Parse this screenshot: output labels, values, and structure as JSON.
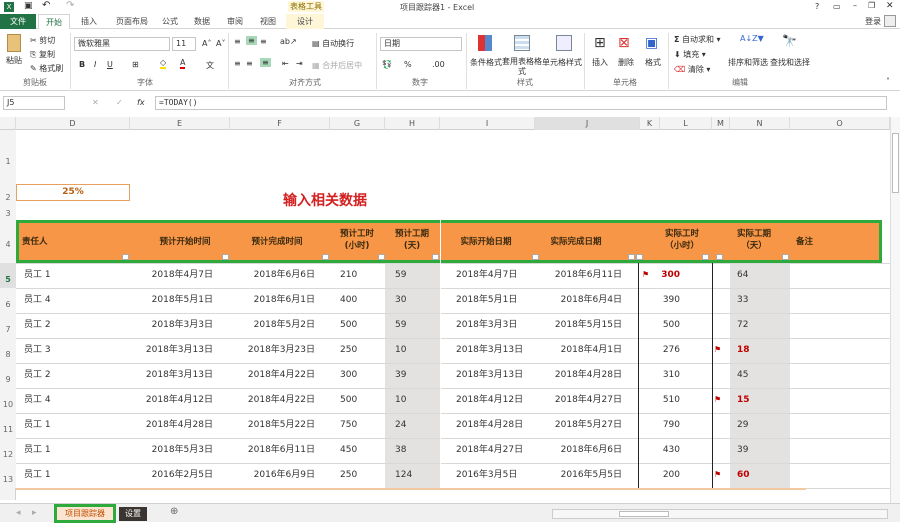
{
  "app": {
    "title": "项目跟踪器1 - Excel",
    "context_tab": "表格工具",
    "login": "登录"
  },
  "tabs": [
    "文件",
    "开始",
    "插入",
    "页面布局",
    "公式",
    "数据",
    "审阅",
    "视图",
    "设计"
  ],
  "ribbon": {
    "clipboard": {
      "paste": "粘贴",
      "cut": "剪切",
      "copy": "复制",
      "format_painter": "格式刷",
      "label": "剪贴板"
    },
    "font": {
      "name": "微软雅黑",
      "size": "11",
      "label": "字体",
      "bold": "B",
      "italic": "I",
      "underline": "U"
    },
    "alignment": {
      "wrap": "自动换行",
      "merge": "合并后居中",
      "label": "对齐方式"
    },
    "number": {
      "format": "日期",
      "percent": "%",
      "label": "数字"
    },
    "styles": {
      "conditional": "条件格式",
      "table": "套用表格格式",
      "cell": "单元格样式",
      "label": "样式"
    },
    "cells": {
      "insert": "插入",
      "delete": "删除",
      "format": "格式",
      "label": "单元格"
    },
    "editing": {
      "autosum": "自动求和",
      "fill": "填充",
      "clear": "清除",
      "sort": "排序和筛选",
      "find": "查找和选择",
      "label": "编辑"
    }
  },
  "formula_bar": {
    "name_box": "J5",
    "formula": "=TODAY()"
  },
  "columns": [
    "D",
    "E",
    "F",
    "G",
    "H",
    "I",
    "J",
    "K",
    "L",
    "M",
    "N",
    "O"
  ],
  "rows": [
    "1",
    "2",
    "3",
    "4",
    "5",
    "6",
    "7",
    "8",
    "9",
    "10",
    "11",
    "12",
    "13"
  ],
  "progress": {
    "value": "25%"
  },
  "sheet_title": "输入相关数据",
  "headers": [
    "责任人",
    "预计开始时间",
    "预计完成时间",
    "预计工时\n(小时)",
    "预计工期\n(天)",
    "实际开始日期",
    "实际完成日期",
    "实际工时\n（小时）",
    "实际工期\n（天）",
    "备注"
  ],
  "table": [
    {
      "owner": "员工 1",
      "pstart": "2018年4月7日",
      "pend": "2018年6月6日",
      "phours": "210",
      "pdays": "59",
      "astart": "2018年4月7日",
      "aend": "2018年6月11日",
      "ahours": "300",
      "adays": "64",
      "hflag": true,
      "dflag": false
    },
    {
      "owner": "员工 4",
      "pstart": "2018年5月1日",
      "pend": "2018年6月1日",
      "phours": "400",
      "pdays": "30",
      "astart": "2018年5月1日",
      "aend": "2018年6月4日",
      "ahours": "390",
      "adays": "33",
      "hflag": false,
      "dflag": false
    },
    {
      "owner": "员工 2",
      "pstart": "2018年3月3日",
      "pend": "2018年5月2日",
      "phours": "500",
      "pdays": "59",
      "astart": "2018年3月3日",
      "aend": "2018年5月15日",
      "ahours": "500",
      "adays": "72",
      "hflag": false,
      "dflag": false
    },
    {
      "owner": "员工 3",
      "pstart": "2018年3月13日",
      "pend": "2018年3月23日",
      "phours": "250",
      "pdays": "10",
      "astart": "2018年3月13日",
      "aend": "2018年4月1日",
      "ahours": "276",
      "adays": "18",
      "hflag": false,
      "dflag": true
    },
    {
      "owner": "员工 2",
      "pstart": "2018年3月13日",
      "pend": "2018年4月22日",
      "phours": "300",
      "pdays": "39",
      "astart": "2018年3月13日",
      "aend": "2018年4月28日",
      "ahours": "310",
      "adays": "45",
      "hflag": false,
      "dflag": false
    },
    {
      "owner": "员工 4",
      "pstart": "2018年4月12日",
      "pend": "2018年4月22日",
      "phours": "500",
      "pdays": "10",
      "astart": "2018年4月12日",
      "aend": "2018年4月27日",
      "ahours": "510",
      "adays": "15",
      "hflag": false,
      "dflag": true
    },
    {
      "owner": "员工 1",
      "pstart": "2018年4月28日",
      "pend": "2018年5月22日",
      "phours": "750",
      "pdays": "24",
      "astart": "2018年4月28日",
      "aend": "2018年5月27日",
      "ahours": "790",
      "adays": "29",
      "hflag": false,
      "dflag": false
    },
    {
      "owner": "员工 1",
      "pstart": "2018年5月3日",
      "pend": "2018年6月11日",
      "phours": "450",
      "pdays": "38",
      "astart": "2018年4月27日",
      "aend": "2018年6月6日",
      "ahours": "430",
      "adays": "39",
      "hflag": false,
      "dflag": false
    },
    {
      "owner": "员工 1",
      "pstart": "2016年2月5日",
      "pend": "2016年6月9日",
      "phours": "250",
      "pdays": "124",
      "astart": "2016年3月5日",
      "aend": "2016年5月5日",
      "ahours": "200",
      "adays": "60",
      "hflag": false,
      "dflag": true
    }
  ],
  "sheets": [
    "项目跟踪器",
    "设置"
  ],
  "colors": {
    "excel_green": "#217346",
    "header_orange": "#f79646",
    "outline_green": "#2eaa3c",
    "alert_red": "#c00000",
    "shade_gray": "#e4e2e0"
  }
}
